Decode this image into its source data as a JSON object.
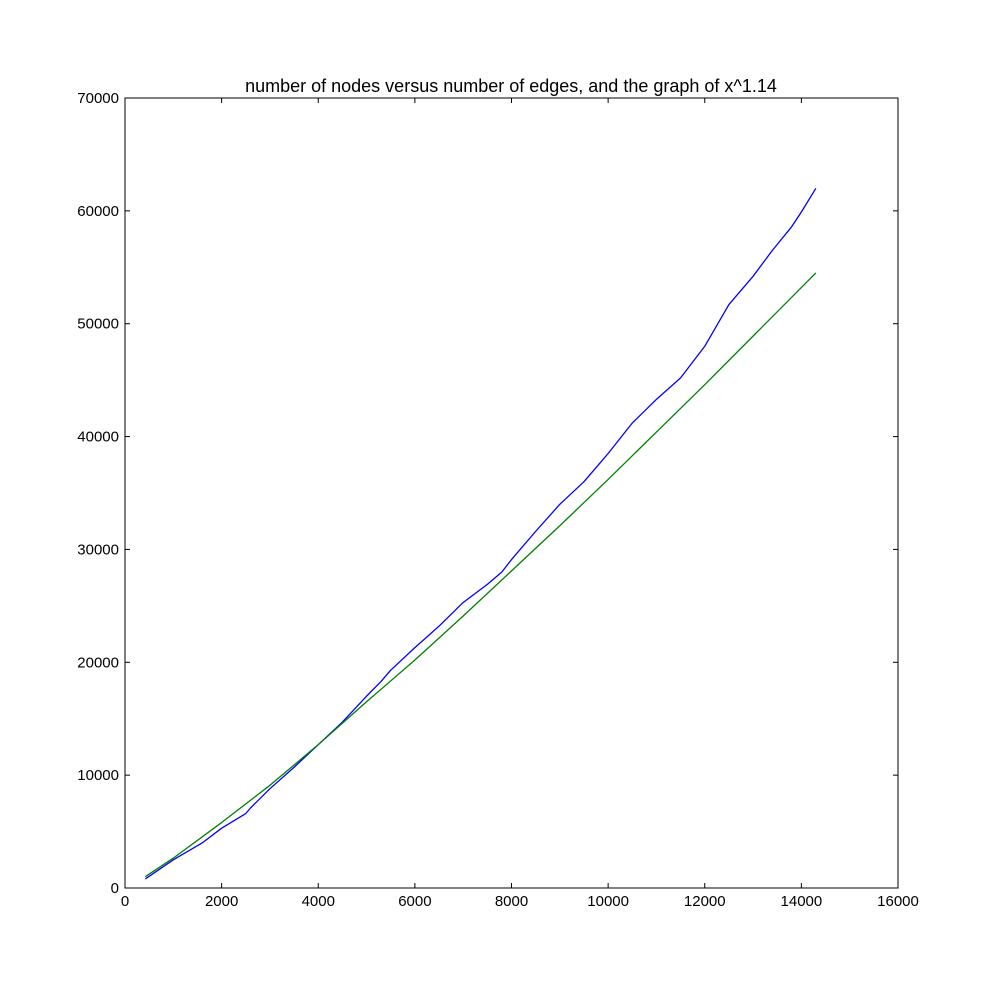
{
  "chart_data": {
    "type": "line",
    "title": "number of nodes versus number of edges, and the graph of x^1.14",
    "xlabel": "",
    "ylabel": "",
    "xlim": [
      0,
      16000
    ],
    "ylim": [
      0,
      70000
    ],
    "xticks": [
      0,
      2000,
      4000,
      6000,
      8000,
      10000,
      12000,
      14000,
      16000
    ],
    "yticks": [
      0,
      10000,
      20000,
      30000,
      40000,
      50000,
      60000,
      70000
    ],
    "xtick_labels": [
      "0",
      "2000",
      "4000",
      "6000",
      "8000",
      "10000",
      "12000",
      "14000",
      "16000"
    ],
    "ytick_labels": [
      "0",
      "10000",
      "20000",
      "30000",
      "40000",
      "50000",
      "60000",
      "70000"
    ],
    "grid": false,
    "series": [
      {
        "color": "#0000ff",
        "points": [
          [
            420,
            800
          ],
          [
            1000,
            2500
          ],
          [
            1600,
            4000
          ],
          [
            2000,
            5300
          ],
          [
            2500,
            6600
          ],
          [
            2600,
            7100
          ],
          [
            3000,
            8800
          ],
          [
            3500,
            10700
          ],
          [
            4000,
            12700
          ],
          [
            4500,
            14700
          ],
          [
            5000,
            17000
          ],
          [
            5300,
            18300
          ],
          [
            5500,
            19300
          ],
          [
            6000,
            21300
          ],
          [
            6500,
            23200
          ],
          [
            7000,
            25300
          ],
          [
            7500,
            26900
          ],
          [
            7800,
            28000
          ],
          [
            8000,
            29100
          ],
          [
            8500,
            31600
          ],
          [
            9000,
            34000
          ],
          [
            9500,
            36000
          ],
          [
            9800,
            37500
          ],
          [
            10000,
            38500
          ],
          [
            10500,
            41200
          ],
          [
            11000,
            43300
          ],
          [
            11500,
            45200
          ],
          [
            12000,
            48000
          ],
          [
            12500,
            51700
          ],
          [
            13000,
            54200
          ],
          [
            13400,
            56500
          ],
          [
            13800,
            58600
          ],
          [
            14000,
            59900
          ],
          [
            14300,
            62000
          ]
        ]
      },
      {
        "color": "#008000",
        "points": [
          [
            420,
            1000
          ],
          [
            1000,
            2650
          ],
          [
            2000,
            5800
          ],
          [
            3000,
            9100
          ],
          [
            4000,
            12700
          ],
          [
            5000,
            16500
          ],
          [
            6000,
            20200
          ],
          [
            7000,
            24100
          ],
          [
            8000,
            28100
          ],
          [
            9000,
            32100
          ],
          [
            10000,
            36200
          ],
          [
            11000,
            40400
          ],
          [
            12000,
            44600
          ],
          [
            13000,
            48900
          ],
          [
            14300,
            54500
          ]
        ]
      }
    ]
  }
}
